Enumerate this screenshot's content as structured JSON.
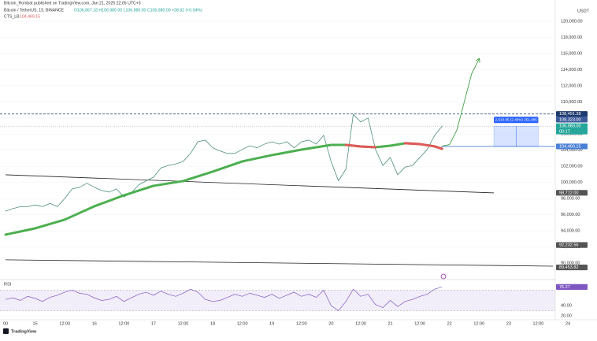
{
  "header": {
    "publisher": "Bitcoin_Rombat published on TradingView.com, Jan 21, 2025 22:05 UTC+3",
    "symbol": "Bitcoin / TetherUS, 15, BINANCE",
    "ohlc": "O106,867.18 H106,980.00 L106,980.00 C106,980.00 +38.82 (+0.04%)",
    "indicator": "CTS_LB",
    "indicator_value": "104,469.15",
    "currency": "USDT",
    "logo": "TradingView"
  },
  "chart_data": [
    {
      "type": "line",
      "categories": [
        "00",
        null,
        null,
        null,
        "15",
        null,
        null,
        null,
        "12:00",
        null,
        null,
        null,
        "16",
        null,
        null,
        null,
        "12:00",
        null,
        null,
        null,
        "17",
        null,
        null,
        null,
        "12:00",
        null,
        null,
        null,
        "18",
        null,
        null,
        null,
        "12:00",
        null,
        null,
        null,
        "19",
        null,
        null,
        null,
        "12:00",
        null,
        null,
        null,
        "20",
        null,
        null,
        null,
        "12:00",
        null,
        null,
        null,
        "21",
        null,
        null,
        null,
        "12:00",
        null,
        null,
        null,
        "22",
        null,
        null,
        null,
        "12:00",
        null,
        null,
        null,
        "23",
        null,
        null,
        null,
        "12:00",
        null,
        null,
        null,
        "24"
      ],
      "series": [
        {
          "name": "Bitcoin / TetherUS",
          "color": "#4f8f78",
          "width": 0.8,
          "values": [
            96450,
            96750,
            97000,
            97000,
            97200,
            97000,
            97400,
            97000,
            98000,
            99200,
            99400,
            99900,
            99400,
            99000,
            98800,
            99200,
            98200,
            98700,
            99700,
            100200,
            100650,
            101800,
            102100,
            102300,
            102600,
            103600,
            105050,
            105250,
            104300,
            103900,
            103600,
            103600,
            104100,
            104550,
            104300,
            104750,
            105050,
            104750,
            105050,
            104300,
            105050,
            105250,
            104750,
            105850,
            102600,
            100200,
            101650,
            108450,
            107500,
            108000,
            104100,
            102100,
            103100,
            100950,
            101900,
            102100,
            103100,
            104100,
            105850,
            106980,
            null,
            null,
            null,
            null,
            null,
            null,
            null,
            null,
            null,
            null,
            null,
            null,
            null,
            null,
            null,
            null,
            null
          ]
        },
        {
          "name": "CTS_LB",
          "color": "#4caf50",
          "down_color": "#e05a5a",
          "width": 3,
          "values": [
            93520,
            93715,
            93910,
            94105,
            94300,
            94570,
            94840,
            95110,
            95380,
            95795,
            96210,
            96625,
            97040,
            97380,
            97720,
            98060,
            98400,
            98695,
            98990,
            99285,
            99580,
            99730,
            99875,
            100020,
            100170,
            100460,
            100750,
            101050,
            101340,
            101660,
            101975,
            102290,
            102610,
            102805,
            103000,
            103195,
            103390,
            103560,
            103730,
            103900,
            104070,
            104220,
            104365,
            104510,
            104660,
            104660,
            104660,
            104560,
            104460,
            104415,
            104370,
            104465,
            104560,
            104710,
            104860,
            104810,
            104760,
            104615,
            104470,
            104170,
            null,
            null,
            null,
            null,
            null,
            null,
            null,
            null,
            null,
            null,
            null,
            null,
            null,
            null,
            null,
            null,
            null
          ]
        },
        {
          "name": "Projection",
          "color": "#43a047",
          "width": 0.9,
          "arrow": true,
          "values": [
            null,
            null,
            null,
            null,
            null,
            null,
            null,
            null,
            null,
            null,
            null,
            null,
            null,
            null,
            null,
            null,
            null,
            null,
            null,
            null,
            null,
            null,
            null,
            null,
            null,
            null,
            null,
            null,
            null,
            null,
            null,
            null,
            null,
            null,
            null,
            null,
            null,
            null,
            null,
            null,
            null,
            null,
            null,
            null,
            null,
            null,
            null,
            null,
            null,
            null,
            null,
            null,
            null,
            null,
            null,
            null,
            null,
            null,
            null,
            104500,
            104700,
            106500,
            110000,
            113500,
            115300,
            null,
            null,
            null,
            null,
            null,
            null,
            null,
            null,
            null,
            null,
            null,
            null
          ]
        }
      ],
      "ylim": [
        88240,
        121660
      ],
      "yticks": [
        {
          "value": 90000,
          "label": "90,000.00"
        },
        {
          "value": 92000,
          "label": "92,000.00"
        },
        {
          "value": 94000,
          "label": "94,000.00"
        },
        {
          "value": 96000,
          "label": "96,000.00"
        },
        {
          "value": 98000,
          "label": "98,000.00"
        },
        {
          "value": 100000,
          "label": "100,000.00"
        },
        {
          "value": 102000,
          "label": "102,000.00"
        },
        {
          "value": 104000,
          "label": "104,000.00"
        },
        {
          "value": 106000,
          "label": "106,000.00"
        },
        {
          "value": 108000,
          "label": "108,000.00"
        },
        {
          "value": 110000,
          "label": "110,000.00"
        },
        {
          "value": 112000,
          "label": "112,000.00"
        },
        {
          "value": 114000,
          "label": "114,000.00"
        },
        {
          "value": 116000,
          "label": "116,000.00"
        },
        {
          "value": 118000,
          "label": "118,000.00"
        },
        {
          "value": 120000,
          "label": "120,000.00"
        }
      ],
      "grid": true,
      "trendlines": [
        {
          "x": [
            0,
            66
          ],
          "y": [
            100950,
            98700
          ],
          "color": "#222222"
        },
        {
          "x": [
            0,
            74
          ],
          "y": [
            90400,
            89610
          ],
          "color": "#222222"
        }
      ],
      "measure": {
        "start": 66,
        "end": 72,
        "low": 104469.15,
        "high": 106980,
        "label": "2,510.85 (2.40%) 251,085",
        "color": "#2962ff"
      },
      "price_labels": [
        {
          "value": 108491.38,
          "label": "108,491.38",
          "color": "#1e3a6e",
          "line": "dashed"
        },
        {
          "value": 108323.0,
          "label": "108,323.00",
          "color": "#3d5c9c",
          "line": null
        },
        {
          "value": 106980.0,
          "label": "106,980.00",
          "sub": "00:17",
          "color": "#26a69a",
          "line": "dotted"
        },
        {
          "value": 104469.15,
          "label": "104,469.15",
          "color": "#4a7fd6",
          "line": "solid"
        },
        {
          "value": 98712.0,
          "label": "98,712.00",
          "color": "#555555",
          "line": null
        },
        {
          "value": 92232.56,
          "label": "92,232.56",
          "color": "#555555",
          "line": null
        },
        {
          "value": 89453.82,
          "label": "89,453.82",
          "color": "#555555",
          "line": null
        }
      ]
    },
    {
      "type": "line",
      "title": "RSI",
      "color": "#7e57c2",
      "values": [
        52,
        55,
        50,
        58,
        54,
        48,
        56,
        60,
        66,
        70,
        64,
        62,
        55,
        50,
        52,
        58,
        48,
        55,
        62,
        66,
        60,
        68,
        62,
        58,
        64,
        72,
        66,
        52,
        48,
        50,
        56,
        62,
        58,
        64,
        60,
        56,
        62,
        54,
        60,
        66,
        58,
        62,
        56,
        70,
        40,
        30,
        48,
        72,
        58,
        62,
        42,
        36,
        50,
        38,
        48,
        52,
        58,
        62,
        72,
        76.27
      ],
      "last_label": {
        "value": 76.27,
        "label": "76.27"
      },
      "band": [
        30,
        70
      ],
      "ylim": [
        14,
        86
      ],
      "yticks": [
        {
          "value": 40,
          "label": "40.00"
        },
        {
          "value": 20,
          "label": "20.00"
        }
      ]
    }
  ]
}
